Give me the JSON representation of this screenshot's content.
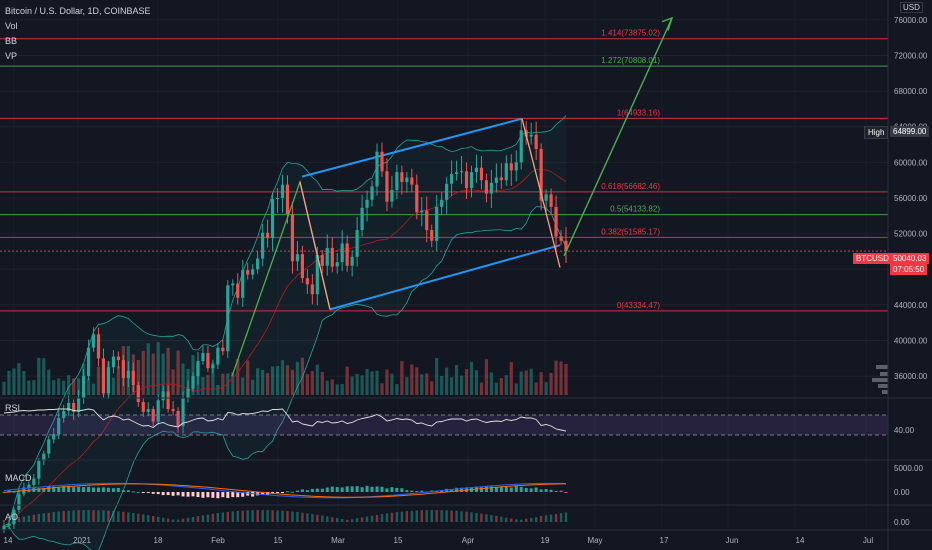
{
  "legend": {
    "title": "Bitcoin / U.S. Dollar, 1D, COINBASE",
    "indicators": [
      "Vol",
      "BB",
      "VP"
    ]
  },
  "panes": {
    "rsi_label": "RSI",
    "macd_label": "MACD",
    "ao_label": "AO"
  },
  "colors": {
    "up": "#26a69a",
    "down": "#ef5350",
    "fib_red": "#f23645",
    "fib_green": "#4caf50",
    "channel": "#2196f3",
    "bb": "#26a69a",
    "arrow": "#4caf50",
    "zigzag": "#ff9e80",
    "bg": "#131722"
  },
  "price_axis": {
    "currency": "USD",
    "ticks": [
      "76000.00",
      "72000.00",
      "68000.00",
      "64000.00",
      "60000.00",
      "56000.00",
      "52000.00",
      "48000.00",
      "44000.00",
      "40000.00",
      "36000.00"
    ]
  },
  "badges": {
    "high_label": "High",
    "high_value": "64899.00",
    "btc_symbol": "BTCUSD",
    "btc_price": "50040.03",
    "countdown": "07:05:50"
  },
  "fib_levels": [
    {
      "label": "1.414(73875.02)",
      "price": 73875.02,
      "color": "red"
    },
    {
      "label": "1.272(70808.01)",
      "price": 70808.01,
      "color": "green"
    },
    {
      "label": "1(64933.16)",
      "price": 64933.16,
      "color": "red"
    },
    {
      "label": "0.618(56682.46)",
      "price": 56682.46,
      "color": "red"
    },
    {
      "label": "0.5(54133.82)",
      "price": 54133.82,
      "color": "green"
    },
    {
      "label": "0.382(51585.17)",
      "price": 51585.17,
      "color": "red"
    },
    {
      "label": "0(43334.47)",
      "price": 43334.47,
      "color": "red"
    }
  ],
  "rsi_axis": {
    "ticks": [
      "40.00"
    ]
  },
  "macd_axis": {
    "ticks": [
      "5000.00",
      "0.00"
    ]
  },
  "ao_axis": {
    "ticks": [
      "0.00"
    ]
  },
  "time_axis": {
    "ticks": [
      "14",
      "2021",
      "18",
      "Feb",
      "15",
      "Mar",
      "15",
      "Apr",
      "19",
      "May",
      "17",
      "Jun",
      "14",
      "Jul"
    ]
  },
  "chart_data": {
    "type": "candlestick",
    "title": "Bitcoin / U.S. Dollar, 1D, COINBASE",
    "ylim": [
      34000,
      78000
    ],
    "series": [
      {
        "name": "BTCUSD",
        "close": [
          19200,
          19400,
          21000,
          22800,
          23500,
          23800,
          24500,
          26500,
          27300,
          28900,
          29500,
          31300,
          32100,
          33000,
          32000,
          33500,
          36000,
          39200,
          40700,
          38000,
          34100,
          37000,
          38200,
          37800,
          35800,
          36600,
          35000,
          33100,
          32000,
          32300,
          30900,
          33300,
          34300,
          32300,
          32100,
          30400,
          33500,
          34600,
          36000,
          37700,
          38600,
          36900,
          37300,
          39200,
          38800,
          46200,
          46400,
          44800,
          47900,
          47400,
          48000,
          49200,
          52100,
          51500,
          55900,
          56000,
          57500,
          54200,
          48900,
          49700,
          47000,
          46300,
          45200,
          49600,
          48400,
          50400,
          48300,
          48800,
          50900,
          48400,
          49400,
          52400,
          54900,
          55800,
          57300,
          61200,
          59000,
          55600,
          56900,
          58900,
          57800,
          58300,
          57500,
          54400,
          54600,
          52400,
          51200,
          55000,
          55800,
          57600,
          58700,
          58900,
          59000,
          57100,
          58900,
          59400,
          58000,
          56500,
          57700,
          58300,
          58000,
          59900,
          59100,
          60000,
          63600,
          62900,
          63100,
          61500,
          55700,
          56400,
          55000,
          51700,
          51200,
          50050
        ]
      },
      {
        "name": "RSI",
        "values": [
          74,
          75,
          76,
          78,
          79,
          78,
          79,
          80,
          80,
          81,
          81,
          82,
          82,
          82,
          79,
          78,
          80,
          82,
          80,
          69,
          60,
          66,
          68,
          66,
          60,
          62,
          57,
          52,
          48,
          49,
          45,
          53,
          55,
          50,
          48,
          46,
          54,
          56,
          60,
          63,
          64,
          58,
          59,
          63,
          60,
          75,
          74,
          70,
          73,
          72,
          73,
          75,
          78,
          77,
          81,
          81,
          82,
          70,
          56,
          58,
          52,
          50,
          48,
          57,
          55,
          58,
          54,
          55,
          58,
          53,
          55,
          60,
          63,
          65,
          67,
          71,
          66,
          58,
          60,
          63,
          61,
          62,
          60,
          53,
          54,
          50,
          48,
          56,
          57,
          60,
          62,
          62,
          62,
          58,
          61,
          62,
          58,
          55,
          57,
          58,
          57,
          61,
          59,
          61,
          66,
          64,
          64,
          61,
          49,
          51,
          48,
          42,
          40,
          38
        ]
      }
    ],
    "xlabel": "",
    "ylabel": ""
  }
}
